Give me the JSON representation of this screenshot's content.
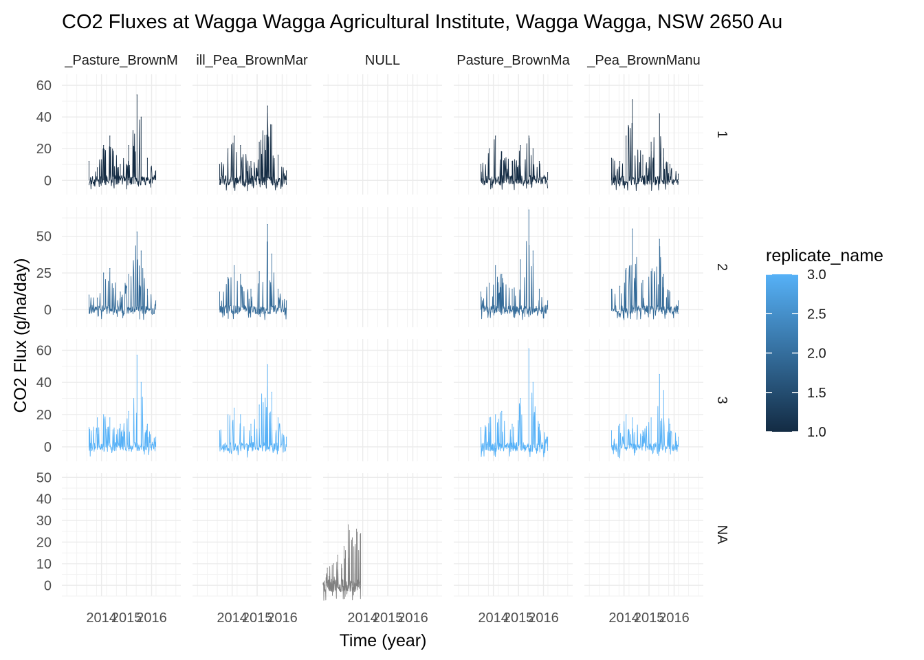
{
  "chart_data": {
    "type": "line",
    "title": "CO2 Fluxes at Wagga Wagga Agricultural Institute, Wagga Wagga, NSW 2650 Au",
    "xlabel": "Time (year)",
    "ylabel": "CO2 Flux (g/ha/day)",
    "x_ticks": [
      "2014",
      "2015",
      "2016"
    ],
    "xlim": [
      "2012-06",
      "2017-03"
    ],
    "grid": true,
    "columns": [
      "_Pasture_BrownM",
      "ill_Pea_BrownMar",
      "NULL",
      "Pasture_BrownMa",
      "_Pea_BrownManu"
    ],
    "rows": [
      {
        "label": "1",
        "ylim": [
          -9,
          67
        ],
        "y_ticks": [
          "0",
          "20",
          "40",
          "60"
        ],
        "color": "#132B43"
      },
      {
        "label": "2",
        "ylim": [
          -12,
          70
        ],
        "y_ticks": [
          "0",
          "25",
          "50"
        ],
        "color": "#336A98"
      },
      {
        "label": "3",
        "ylim": [
          -9,
          67
        ],
        "y_ticks": [
          "0",
          "20",
          "40",
          "60"
        ],
        "color": "#56B1F7"
      },
      {
        "label": "NA",
        "ylim": [
          -5,
          52
        ],
        "y_ticks": [
          "0",
          "10",
          "20",
          "30",
          "40",
          "50"
        ],
        "color": "#808080"
      }
    ],
    "panels": [
      {
        "row": "1",
        "col": 0,
        "series": [
          {
            "x": "2013-07",
            "y": 12
          },
          {
            "x": "2013-11",
            "y": 8
          },
          {
            "x": "2014-02",
            "y": 22
          },
          {
            "x": "2014-05",
            "y": 28
          },
          {
            "x": "2014-10",
            "y": 10
          },
          {
            "x": "2015-02",
            "y": 22
          },
          {
            "x": "2015-06",
            "y": 54
          },
          {
            "x": "2015-08",
            "y": 40
          },
          {
            "x": "2015-11",
            "y": 14
          },
          {
            "x": "2016-03",
            "y": 6
          }
        ]
      },
      {
        "row": "1",
        "col": 1,
        "series": [
          {
            "x": "2013-07",
            "y": 10
          },
          {
            "x": "2013-11",
            "y": 20
          },
          {
            "x": "2014-02",
            "y": 28
          },
          {
            "x": "2014-05",
            "y": 22
          },
          {
            "x": "2014-10",
            "y": 12
          },
          {
            "x": "2015-02",
            "y": 24
          },
          {
            "x": "2015-06",
            "y": 47
          },
          {
            "x": "2015-08",
            "y": 35
          },
          {
            "x": "2015-11",
            "y": 16
          },
          {
            "x": "2016-03",
            "y": 6
          }
        ]
      },
      {
        "row": "1",
        "col": 3,
        "series": [
          {
            "x": "2013-07",
            "y": 10
          },
          {
            "x": "2013-11",
            "y": 20
          },
          {
            "x": "2014-02",
            "y": 28
          },
          {
            "x": "2014-05",
            "y": 18
          },
          {
            "x": "2014-10",
            "y": 12
          },
          {
            "x": "2015-02",
            "y": 22
          },
          {
            "x": "2015-06",
            "y": 28
          },
          {
            "x": "2015-08",
            "y": 20
          },
          {
            "x": "2015-11",
            "y": 12
          },
          {
            "x": "2016-03",
            "y": 5
          }
        ]
      },
      {
        "row": "1",
        "col": 4,
        "series": [
          {
            "x": "2013-07",
            "y": 14
          },
          {
            "x": "2013-11",
            "y": 12
          },
          {
            "x": "2014-02",
            "y": 28
          },
          {
            "x": "2014-05",
            "y": 51
          },
          {
            "x": "2014-10",
            "y": 16
          },
          {
            "x": "2015-02",
            "y": 24
          },
          {
            "x": "2015-06",
            "y": 42
          },
          {
            "x": "2015-08",
            "y": 20
          },
          {
            "x": "2015-11",
            "y": 10
          },
          {
            "x": "2016-03",
            "y": 4
          }
        ]
      },
      {
        "row": "2",
        "col": 0,
        "series": [
          {
            "x": "2013-07",
            "y": 10
          },
          {
            "x": "2013-11",
            "y": 8
          },
          {
            "x": "2014-02",
            "y": 25
          },
          {
            "x": "2014-05",
            "y": 28
          },
          {
            "x": "2014-10",
            "y": 12
          },
          {
            "x": "2015-02",
            "y": 24
          },
          {
            "x": "2015-06",
            "y": 53
          },
          {
            "x": "2015-08",
            "y": 40
          },
          {
            "x": "2015-11",
            "y": 14
          },
          {
            "x": "2016-03",
            "y": 6
          }
        ]
      },
      {
        "row": "2",
        "col": 1,
        "series": [
          {
            "x": "2013-07",
            "y": 12
          },
          {
            "x": "2013-11",
            "y": 22
          },
          {
            "x": "2014-02",
            "y": 30
          },
          {
            "x": "2014-05",
            "y": 24
          },
          {
            "x": "2014-10",
            "y": 14
          },
          {
            "x": "2015-02",
            "y": 26
          },
          {
            "x": "2015-06",
            "y": 58
          },
          {
            "x": "2015-08",
            "y": 38
          },
          {
            "x": "2015-11",
            "y": 14
          },
          {
            "x": "2016-03",
            "y": 6
          }
        ]
      },
      {
        "row": "2",
        "col": 3,
        "series": [
          {
            "x": "2013-07",
            "y": 12
          },
          {
            "x": "2013-11",
            "y": 18
          },
          {
            "x": "2014-02",
            "y": 30
          },
          {
            "x": "2014-05",
            "y": 24
          },
          {
            "x": "2014-10",
            "y": 14
          },
          {
            "x": "2015-02",
            "y": 34
          },
          {
            "x": "2015-06",
            "y": 68
          },
          {
            "x": "2015-08",
            "y": 40
          },
          {
            "x": "2015-11",
            "y": 14
          },
          {
            "x": "2016-03",
            "y": 6
          }
        ]
      },
      {
        "row": "2",
        "col": 4,
        "series": [
          {
            "x": "2013-07",
            "y": 14
          },
          {
            "x": "2013-11",
            "y": 16
          },
          {
            "x": "2014-02",
            "y": 28
          },
          {
            "x": "2014-05",
            "y": 55
          },
          {
            "x": "2014-10",
            "y": 20
          },
          {
            "x": "2015-02",
            "y": 26
          },
          {
            "x": "2015-06",
            "y": 48
          },
          {
            "x": "2015-08",
            "y": 24
          },
          {
            "x": "2015-11",
            "y": 12
          },
          {
            "x": "2016-03",
            "y": 6
          }
        ]
      },
      {
        "row": "3",
        "col": 0,
        "series": [
          {
            "x": "2013-07",
            "y": 12
          },
          {
            "x": "2013-11",
            "y": 18
          },
          {
            "x": "2014-02",
            "y": 20
          },
          {
            "x": "2014-05",
            "y": 18
          },
          {
            "x": "2014-10",
            "y": 14
          },
          {
            "x": "2015-02",
            "y": 22
          },
          {
            "x": "2015-06",
            "y": 57
          },
          {
            "x": "2015-08",
            "y": 40
          },
          {
            "x": "2015-11",
            "y": 14
          },
          {
            "x": "2016-03",
            "y": 6
          }
        ]
      },
      {
        "row": "3",
        "col": 1,
        "series": [
          {
            "x": "2013-07",
            "y": 10
          },
          {
            "x": "2013-11",
            "y": 20
          },
          {
            "x": "2014-02",
            "y": 24
          },
          {
            "x": "2014-05",
            "y": 20
          },
          {
            "x": "2014-10",
            "y": 14
          },
          {
            "x": "2015-02",
            "y": 26
          },
          {
            "x": "2015-06",
            "y": 51
          },
          {
            "x": "2015-08",
            "y": 34
          },
          {
            "x": "2015-11",
            "y": 18
          },
          {
            "x": "2016-03",
            "y": 6
          }
        ]
      },
      {
        "row": "3",
        "col": 3,
        "series": [
          {
            "x": "2013-07",
            "y": 12
          },
          {
            "x": "2013-11",
            "y": 18
          },
          {
            "x": "2014-02",
            "y": 20
          },
          {
            "x": "2014-05",
            "y": 22
          },
          {
            "x": "2014-10",
            "y": 14
          },
          {
            "x": "2015-02",
            "y": 30
          },
          {
            "x": "2015-06",
            "y": 61
          },
          {
            "x": "2015-08",
            "y": 40
          },
          {
            "x": "2015-11",
            "y": 14
          },
          {
            "x": "2016-03",
            "y": 6
          }
        ]
      },
      {
        "row": "3",
        "col": 4,
        "series": [
          {
            "x": "2013-07",
            "y": 10
          },
          {
            "x": "2013-11",
            "y": 14
          },
          {
            "x": "2014-02",
            "y": 20
          },
          {
            "x": "2014-05",
            "y": 18
          },
          {
            "x": "2014-10",
            "y": 10
          },
          {
            "x": "2015-02",
            "y": 18
          },
          {
            "x": "2015-06",
            "y": 45
          },
          {
            "x": "2015-08",
            "y": 35
          },
          {
            "x": "2015-11",
            "y": 14
          },
          {
            "x": "2016-03",
            "y": 6
          }
        ]
      },
      {
        "row": "NA",
        "col": 2,
        "series": [
          {
            "x": "2012-06",
            "y": 1
          },
          {
            "x": "2012-08",
            "y": 8
          },
          {
            "x": "2012-11",
            "y": 10
          },
          {
            "x": "2013-01",
            "y": 14
          },
          {
            "x": "2013-04",
            "y": 18
          },
          {
            "x": "2013-06",
            "y": 28
          },
          {
            "x": "2013-08",
            "y": 22
          },
          {
            "x": "2013-10",
            "y": 26
          },
          {
            "x": "2013-12",
            "y": 24
          }
        ]
      }
    ],
    "legend": {
      "title": "replicate_name",
      "position": "right",
      "labels": [
        "3.0",
        "2.5",
        "2.0",
        "1.5",
        "1.0"
      ],
      "color_low": "#132B43",
      "color_high": "#56B1F7"
    }
  }
}
